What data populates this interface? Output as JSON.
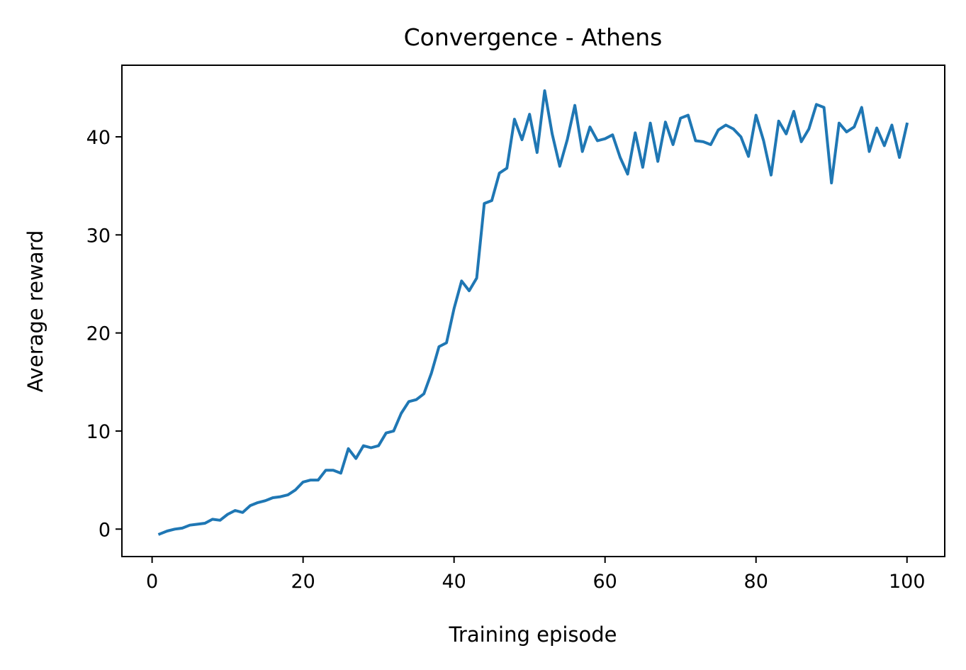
{
  "chart_data": {
    "type": "line",
    "title": "Convergence - Athens",
    "xlabel": "Training episode",
    "ylabel": "Average reward",
    "xlim": [
      -4,
      105
    ],
    "ylim": [
      -2.8,
      47.3
    ],
    "xticks": [
      0,
      20,
      40,
      60,
      80,
      100
    ],
    "yticks": [
      0,
      10,
      20,
      30,
      40
    ],
    "grid": false,
    "colors": {
      "series": "#1f77b4"
    },
    "series": [
      {
        "x": [
          1,
          2,
          3,
          4,
          5,
          6,
          7,
          8,
          9,
          10,
          11,
          12,
          13,
          14,
          15,
          16,
          17,
          18,
          19,
          20,
          21,
          22,
          23,
          24,
          25,
          26,
          27,
          28,
          29,
          30,
          31,
          32,
          33,
          34,
          35,
          36,
          37,
          38,
          39,
          40,
          41,
          42,
          43,
          44,
          45,
          46,
          47,
          48,
          49,
          50,
          51,
          52,
          53,
          54,
          55,
          56,
          57,
          58,
          59,
          60,
          61,
          62,
          63,
          64,
          65,
          66,
          67,
          68,
          69,
          70,
          71,
          72,
          73,
          74,
          75,
          76,
          77,
          78,
          79,
          80,
          81,
          82,
          83,
          84,
          85,
          86,
          87,
          88,
          89,
          90,
          91,
          92,
          93,
          94,
          95,
          96,
          97,
          98,
          99,
          100
        ],
        "values": [
          -0.5,
          -0.2,
          0.0,
          0.1,
          0.4,
          0.5,
          0.6,
          1.0,
          0.9,
          1.5,
          1.9,
          1.7,
          2.4,
          2.7,
          2.9,
          3.2,
          3.3,
          3.5,
          4.0,
          4.8,
          5.0,
          5.0,
          6.0,
          6.0,
          5.7,
          8.2,
          7.2,
          8.5,
          8.3,
          8.5,
          9.8,
          10.0,
          11.8,
          13.0,
          13.2,
          13.8,
          15.9,
          18.6,
          19.0,
          22.5,
          25.3,
          24.3,
          25.6,
          33.2,
          33.5,
          36.3,
          36.8,
          41.8,
          39.7,
          42.3,
          38.4,
          44.7,
          40.3,
          37.0,
          39.7,
          43.2,
          38.5,
          41.0,
          39.6,
          39.8,
          40.2,
          37.9,
          36.2,
          40.4,
          36.9,
          41.4,
          37.5,
          41.5,
          39.2,
          41.9,
          42.2,
          39.6,
          39.5,
          39.2,
          40.7,
          41.2,
          40.8,
          40.0,
          38.0,
          42.2,
          39.6,
          36.1,
          41.6,
          40.3,
          42.6,
          39.5,
          40.8,
          43.3,
          43.0,
          35.3,
          41.4,
          40.5,
          41.0,
          43.0,
          38.5,
          40.9,
          39.1,
          41.2,
          37.9,
          41.3
        ]
      }
    ]
  }
}
